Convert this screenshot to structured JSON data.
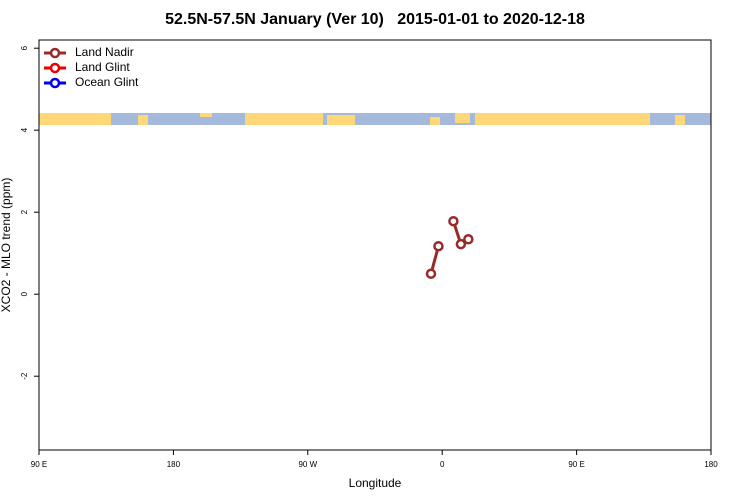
{
  "chart_data": {
    "type": "line",
    "title": "52.5N-57.5N January (Ver 10)   2015-01-01 to 2020-12-18",
    "xlabel": "Longitude",
    "ylabel": "XCO2 - MLO trend (ppm)",
    "x": [
      -7.5,
      -2.5,
      2.5,
      7.5,
      12.5,
      17.5
    ],
    "series": [
      {
        "name": "Land Nadir",
        "color": "#992a2a",
        "values": [
          0.5,
          1.17,
          null,
          1.78,
          1.22,
          1.34
        ]
      },
      {
        "name": "Land Glint",
        "color": "#ee0000",
        "values": [
          null,
          null,
          null,
          null,
          null,
          null
        ]
      },
      {
        "name": "Ocean Glint",
        "color": "#0000ee",
        "values": [
          null,
          null,
          null,
          null,
          null,
          null
        ]
      }
    ],
    "xlim": [
      -270,
      180
    ],
    "xticks": [
      {
        "value": -270,
        "label": "90 E"
      },
      {
        "value": -180,
        "label": "180"
      },
      {
        "value": -90,
        "label": "90 W"
      },
      0,
      {
        "value": 90,
        "label": "90 E"
      },
      {
        "value": 180,
        "label": "180"
      }
    ],
    "ylim": [
      -3.8,
      6.2
    ],
    "yticks": [
      -2,
      0,
      2,
      4,
      6
    ],
    "legend": "top-left"
  }
}
